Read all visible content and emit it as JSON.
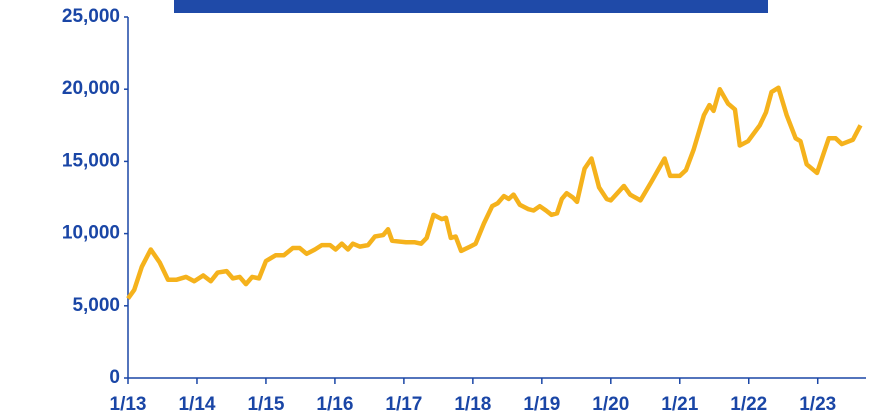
{
  "chart_data": {
    "type": "line",
    "x": [
      2013.0,
      2013.09,
      2013.2,
      2013.33,
      2013.46,
      2013.58,
      2013.7,
      2013.84,
      2013.96,
      2014.09,
      2014.2,
      2014.3,
      2014.43,
      2014.52,
      2014.62,
      2014.71,
      2014.8,
      2014.9,
      2015.0,
      2015.14,
      2015.26,
      2015.39,
      2015.49,
      2015.59,
      2015.71,
      2015.81,
      2015.93,
      2016.01,
      2016.1,
      2016.19,
      2016.26,
      2016.36,
      2016.48,
      2016.58,
      2016.7,
      2016.77,
      2016.83,
      2017.03,
      2017.16,
      2017.25,
      2017.33,
      2017.43,
      2017.55,
      2017.61,
      2017.68,
      2017.75,
      2017.83,
      2017.96,
      2018.04,
      2018.16,
      2018.28,
      2018.36,
      2018.45,
      2018.52,
      2018.59,
      2018.68,
      2018.8,
      2018.88,
      2018.97,
      2019.06,
      2019.14,
      2019.22,
      2019.29,
      2019.36,
      2019.45,
      2019.51,
      2019.62,
      2019.72,
      2019.83,
      2019.94,
      2020.0,
      2020.19,
      2020.28,
      2020.43,
      2020.59,
      2020.78,
      2020.86,
      2021.0,
      2021.09,
      2021.2,
      2021.35,
      2021.43,
      2021.49,
      2021.58,
      2021.7,
      2021.8,
      2021.87,
      2021.99,
      2022.16,
      2022.25,
      2022.33,
      2022.43,
      2022.55,
      2022.68,
      2022.75,
      2022.84,
      2022.99,
      2023.16,
      2023.26,
      2023.35,
      2023.51,
      2023.62
    ],
    "series": [
      {
        "color": "#f5b21c",
        "values": [
          5500,
          6100,
          7700,
          8900,
          8000,
          6800,
          6800,
          7000,
          6700,
          7100,
          6700,
          7300,
          7400,
          6900,
          7000,
          6500,
          7000,
          6900,
          8100,
          8500,
          8500,
          9000,
          9000,
          8600,
          8900,
          9200,
          9200,
          8900,
          9300,
          8900,
          9300,
          9100,
          9200,
          9800,
          9900,
          10300,
          9500,
          9400,
          9400,
          9300,
          9700,
          11300,
          11000,
          11100,
          9700,
          9800,
          8800,
          9100,
          9300,
          10700,
          11900,
          12100,
          12600,
          12400,
          12700,
          12000,
          11700,
          11600,
          11900,
          11600,
          11300,
          11400,
          12400,
          12800,
          12500,
          12200,
          14500,
          15200,
          13200,
          12400,
          12300,
          13300,
          12700,
          12300,
          13600,
          15200,
          14000,
          14000,
          14400,
          15800,
          18200,
          18900,
          18500,
          20000,
          19000,
          18600,
          16100,
          16400,
          17500,
          18400,
          19800,
          20100,
          18200,
          16600,
          16400,
          14800,
          14200,
          16600,
          16600,
          16200,
          16500,
          17500
        ]
      }
    ],
    "xlim": [
      2013,
      2023.7
    ],
    "xticks": [
      {
        "value": 2013,
        "label": "1/13"
      },
      {
        "value": 2014,
        "label": "1/14"
      },
      {
        "value": 2015,
        "label": "1/15"
      },
      {
        "value": 2016,
        "label": "1/16"
      },
      {
        "value": 2017,
        "label": "1/17"
      },
      {
        "value": 2018,
        "label": "1/18"
      },
      {
        "value": 2019,
        "label": "1/19"
      },
      {
        "value": 2020,
        "label": "1/20"
      },
      {
        "value": 2021,
        "label": "1/21"
      },
      {
        "value": 2022,
        "label": "1/22"
      },
      {
        "value": 2023,
        "label": "1/23"
      }
    ],
    "ylim": [
      0,
      25000
    ],
    "yticks": [
      0,
      {
        "value": 5000,
        "label": "5,000"
      },
      {
        "value": 10000,
        "label": "10,000"
      },
      {
        "value": 15000,
        "label": "15,000"
      },
      {
        "value": 20000,
        "label": "20,000"
      },
      {
        "value": 25000,
        "label": "25,000"
      }
    ],
    "grid": false
  }
}
